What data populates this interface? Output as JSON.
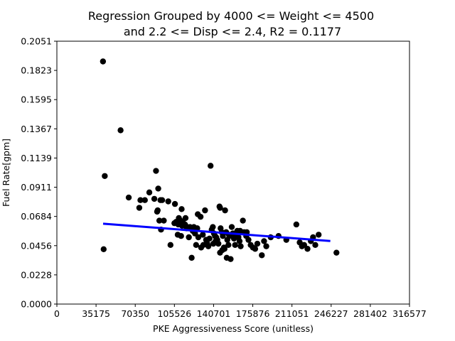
{
  "chart_data": {
    "type": "scatter",
    "title_lines": [
      "Regression Grouped by 4000 <= Weight <= 4500",
      "and 2.2 <= Disp <= 2.4, R2 = 0.1177"
    ],
    "xlabel": "PKE Aggressiveness Score (unitless)",
    "ylabel": "Fuel Rate[gpm]",
    "xlim": [
      0,
      316577
    ],
    "ylim": [
      0,
      0.2051
    ],
    "xticks": [
      "0",
      "35175",
      "70350",
      "105526",
      "140701",
      "175876",
      "211051",
      "246227",
      "281402",
      "316577"
    ],
    "yticks": [
      "0.0000",
      "0.0228",
      "0.0456",
      "0.0684",
      "0.0911",
      "0.1139",
      "0.1367",
      "0.1595",
      "0.1823",
      "0.2051"
    ],
    "grid": false,
    "colors": {
      "points": "#000000",
      "regression": "#0000ff",
      "axes": "#000000"
    },
    "points": [
      [
        41400,
        0.1893
      ],
      [
        43000,
        0.0999
      ],
      [
        57200,
        0.1356
      ],
      [
        42000,
        0.0428
      ],
      [
        64500,
        0.0831
      ],
      [
        75000,
        0.0811
      ],
      [
        79000,
        0.0811
      ],
      [
        74000,
        0.0751
      ],
      [
        83000,
        0.0871
      ],
      [
        89000,
        0.1039
      ],
      [
        87500,
        0.0821
      ],
      [
        91000,
        0.0901
      ],
      [
        90500,
        0.0731
      ],
      [
        90000,
        0.0721
      ],
      [
        93000,
        0.0811
      ],
      [
        94500,
        0.0811
      ],
      [
        92000,
        0.0651
      ],
      [
        96000,
        0.0651
      ],
      [
        93500,
        0.0581
      ],
      [
        100000,
        0.0801
      ],
      [
        106000,
        0.0781
      ],
      [
        112000,
        0.0741
      ],
      [
        102000,
        0.0461
      ],
      [
        107000,
        0.0641
      ],
      [
        109000,
        0.0621
      ],
      [
        111000,
        0.0651
      ],
      [
        113000,
        0.0641
      ],
      [
        115000,
        0.0621
      ],
      [
        108500,
        0.0541
      ],
      [
        111500,
        0.0531
      ],
      [
        117000,
        0.0601
      ],
      [
        118500,
        0.0521
      ],
      [
        122000,
        0.0571
      ],
      [
        123000,
        0.0601
      ],
      [
        124000,
        0.0551
      ],
      [
        125000,
        0.0461
      ],
      [
        126000,
        0.0591
      ],
      [
        127000,
        0.0521
      ],
      [
        121000,
        0.0361
      ],
      [
        126500,
        0.0701
      ],
      [
        129000,
        0.0681
      ],
      [
        131000,
        0.0541
      ],
      [
        133000,
        0.0731
      ],
      [
        134000,
        0.0501
      ],
      [
        135000,
        0.0471
      ],
      [
        136000,
        0.0451
      ],
      [
        137000,
        0.0511
      ],
      [
        138000,
        0.1079
      ],
      [
        139000,
        0.0581
      ],
      [
        140000,
        0.0601
      ],
      [
        141000,
        0.0551
      ],
      [
        142000,
        0.0531
      ],
      [
        143000,
        0.0521
      ],
      [
        144000,
        0.0501
      ],
      [
        145000,
        0.0471
      ],
      [
        146000,
        0.0761
      ],
      [
        146500,
        0.0751
      ],
      [
        147000,
        0.0591
      ],
      [
        148000,
        0.0561
      ],
      [
        149000,
        0.0531
      ],
      [
        150000,
        0.0441
      ],
      [
        151000,
        0.0731
      ],
      [
        152000,
        0.0561
      ],
      [
        153000,
        0.0501
      ],
      [
        154000,
        0.0461
      ],
      [
        155000,
        0.0531
      ],
      [
        156000,
        0.0351
      ],
      [
        157000,
        0.0601
      ],
      [
        158000,
        0.0551
      ],
      [
        159000,
        0.0511
      ],
      [
        160000,
        0.0461
      ],
      [
        162000,
        0.0571
      ],
      [
        163000,
        0.0521
      ],
      [
        164000,
        0.0491
      ],
      [
        165000,
        0.0451
      ],
      [
        167000,
        0.0651
      ],
      [
        168000,
        0.0561
      ],
      [
        170000,
        0.0531
      ],
      [
        172000,
        0.0501
      ],
      [
        174000,
        0.0461
      ],
      [
        176000,
        0.0441
      ],
      [
        178000,
        0.0431
      ],
      [
        180000,
        0.0471
      ],
      [
        184000,
        0.0381
      ],
      [
        186000,
        0.0491
      ],
      [
        188000,
        0.0451
      ],
      [
        192000,
        0.0521
      ],
      [
        199000,
        0.0531
      ],
      [
        206000,
        0.0501
      ],
      [
        215000,
        0.0621
      ],
      [
        218000,
        0.0481
      ],
      [
        220000,
        0.0451
      ],
      [
        222000,
        0.0461
      ],
      [
        225000,
        0.0431
      ],
      [
        228000,
        0.0491
      ],
      [
        230000,
        0.0521
      ],
      [
        232000,
        0.0461
      ],
      [
        235000,
        0.0541
      ],
      [
        146500,
        0.0401
      ],
      [
        148500,
        0.0421
      ],
      [
        150500,
        0.0431
      ],
      [
        152500,
        0.0361
      ],
      [
        129500,
        0.0441
      ],
      [
        131500,
        0.0461
      ],
      [
        140500,
        0.0471
      ],
      [
        142500,
        0.0491
      ],
      [
        154500,
        0.0541
      ],
      [
        160500,
        0.0551
      ],
      [
        164500,
        0.0571
      ],
      [
        170500,
        0.0561
      ],
      [
        119500,
        0.0601
      ],
      [
        115500,
        0.0671
      ],
      [
        109500,
        0.0671
      ],
      [
        105500,
        0.0631
      ],
      [
        112500,
        0.0611
      ],
      [
        116500,
        0.0591
      ],
      [
        251000,
        0.0401
      ]
    ],
    "regression": {
      "x": [
        41500,
        245500
      ],
      "y": [
        0.0627,
        0.0492
      ]
    }
  }
}
